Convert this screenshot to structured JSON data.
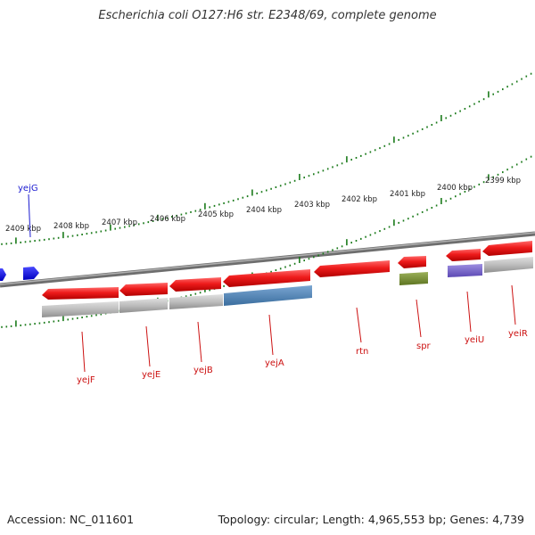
{
  "title": "Escherichia coli O127:H6 str. E2348/69, complete genome",
  "footer": {
    "accession": "Accession: NC_011601",
    "summary": "Topology: circular; Length: 4,965,553 bp; Genes: 4,739"
  },
  "colors": {
    "cds": "#ee1b1b",
    "gene_feature": "#bdbdbd",
    "gene_label": "#cc1111",
    "blue_label": "#1a1ad0",
    "tick": "#1a7a1a",
    "backbone": "#888888"
  },
  "scale_labels": [
    "2409 kbp",
    "2408 kbp",
    "2407 kbp",
    "2406 kbp",
    "2405 kbp",
    "2404 kbp",
    "2403 kbp",
    "2402 kbp",
    "2401 kbp",
    "2400 kbp",
    "2399 kbp"
  ],
  "genes": [
    {
      "name": "yejG",
      "color": "blue_label"
    },
    {
      "name": "yejF",
      "color": "gene_label"
    },
    {
      "name": "yejE",
      "color": "gene_label"
    },
    {
      "name": "yejB",
      "color": "gene_label"
    },
    {
      "name": "yejA",
      "color": "gene_label"
    },
    {
      "name": "rtn",
      "color": "gene_label"
    },
    {
      "name": "spr",
      "color": "gene_label"
    },
    {
      "name": "yeiU",
      "color": "gene_label"
    },
    {
      "name": "yeiR",
      "color": "gene_label"
    }
  ]
}
